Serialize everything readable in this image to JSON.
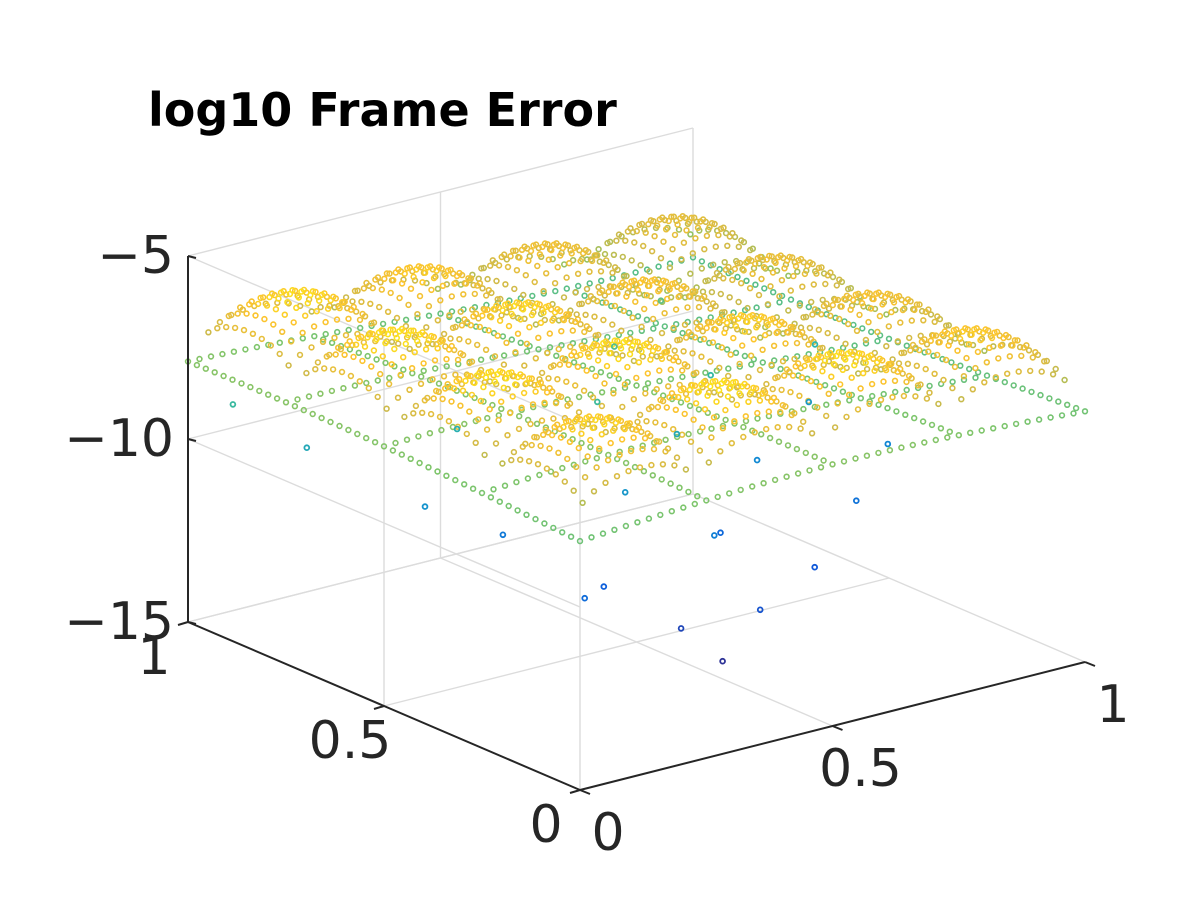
{
  "chart_data": {
    "type": "scatter",
    "subtype": "scatter3",
    "title": "log10 Frame Error",
    "xlabel": "",
    "ylabel": "",
    "zlabel": "",
    "xlim": [
      0,
      1
    ],
    "ylim": [
      0,
      1
    ],
    "zlim": [
      -15,
      -5
    ],
    "x_ticks": [
      "0",
      "0.5",
      "1"
    ],
    "y_ticks": [
      "0",
      "0.5",
      "1"
    ],
    "z_ticks": [
      "-15",
      "-10",
      "-5"
    ],
    "z_tick_values": [
      -15,
      -10,
      -5
    ],
    "grid": true,
    "box": "partial",
    "colormap": "parula",
    "colors": {
      "low": "#352a87",
      "mid": "#2fb7a7",
      "high": "#f9fb0e",
      "dominant": "#f5c12f"
    },
    "surface_description": "dense lattice of points forming ~4x4 dome-shaped lobes at log10 error around -7 to -6, with scattered low outliers down to about -13",
    "grid_n": 45,
    "lobes": 4,
    "z_base": -6.2,
    "z_valley": -8.2,
    "outliers": [
      {
        "x": 0.05,
        "y": 0.95,
        "z": -9.0
      },
      {
        "x": 0.08,
        "y": 0.8,
        "z": -9.6
      },
      {
        "x": 0.12,
        "y": 0.55,
        "z": -10.2
      },
      {
        "x": 0.22,
        "y": 0.48,
        "z": -11.0
      },
      {
        "x": 0.28,
        "y": 0.3,
        "z": -11.8
      },
      {
        "x": 0.34,
        "y": 0.18,
        "z": -12.6
      },
      {
        "x": 0.36,
        "y": 0.1,
        "z": -13.2
      },
      {
        "x": 0.46,
        "y": 0.25,
        "z": -10.8
      },
      {
        "x": 0.55,
        "y": 0.35,
        "z": -11.5
      },
      {
        "x": 0.62,
        "y": 0.2,
        "z": -12.0
      },
      {
        "x": 0.7,
        "y": 0.45,
        "z": -10.5
      },
      {
        "x": 0.78,
        "y": 0.3,
        "z": -11.2
      },
      {
        "x": 0.88,
        "y": 0.55,
        "z": -10.0
      },
      {
        "x": 0.92,
        "y": 0.4,
        "z": -10.6
      },
      {
        "x": 0.97,
        "y": 0.65,
        "z": -9.2
      },
      {
        "x": 0.3,
        "y": 0.7,
        "z": -9.4
      },
      {
        "x": 0.5,
        "y": 0.6,
        "z": -8.9
      },
      {
        "x": 0.65,
        "y": 0.75,
        "z": -8.6
      },
      {
        "x": 0.82,
        "y": 0.85,
        "z": -8.4
      },
      {
        "x": 0.4,
        "y": 0.4,
        "z": -10.1
      },
      {
        "x": 0.58,
        "y": 0.5,
        "z": -9.6
      },
      {
        "x": 0.74,
        "y": 0.62,
        "z": -9.1
      },
      {
        "x": 0.18,
        "y": 0.22,
        "z": -11.4
      },
      {
        "x": 0.45,
        "y": 0.12,
        "z": -12.2
      }
    ]
  }
}
